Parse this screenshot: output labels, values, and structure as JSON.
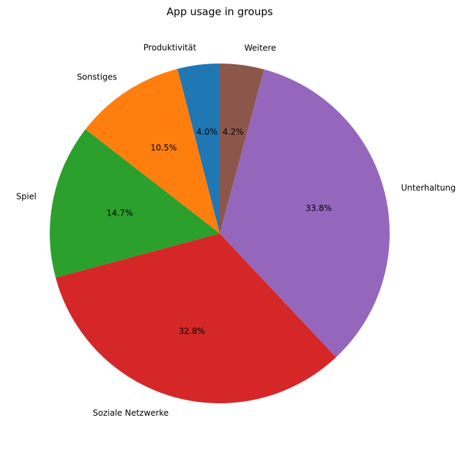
{
  "chart_data": {
    "type": "pie",
    "title": "App usage in groups",
    "start_angle_deg": 90,
    "direction": "counterclockwise",
    "slices": [
      {
        "label": "Produktivität",
        "value": 4.0,
        "pct_label": "4.0%",
        "color": "#1f77b4"
      },
      {
        "label": "Sonstiges",
        "value": 10.5,
        "pct_label": "10.5%",
        "color": "#ff7f0e"
      },
      {
        "label": "Spiel",
        "value": 14.7,
        "pct_label": "14.7%",
        "color": "#2ca02c"
      },
      {
        "label": "Soziale Netzwerke",
        "value": 32.8,
        "pct_label": "32.8%",
        "color": "#d62728"
      },
      {
        "label": "Unterhaltung",
        "value": 33.8,
        "pct_label": "33.8%",
        "color": "#9467bd"
      },
      {
        "label": "Weitere",
        "value": 4.2,
        "pct_label": "4.2%",
        "color": "#8c564b"
      }
    ]
  }
}
